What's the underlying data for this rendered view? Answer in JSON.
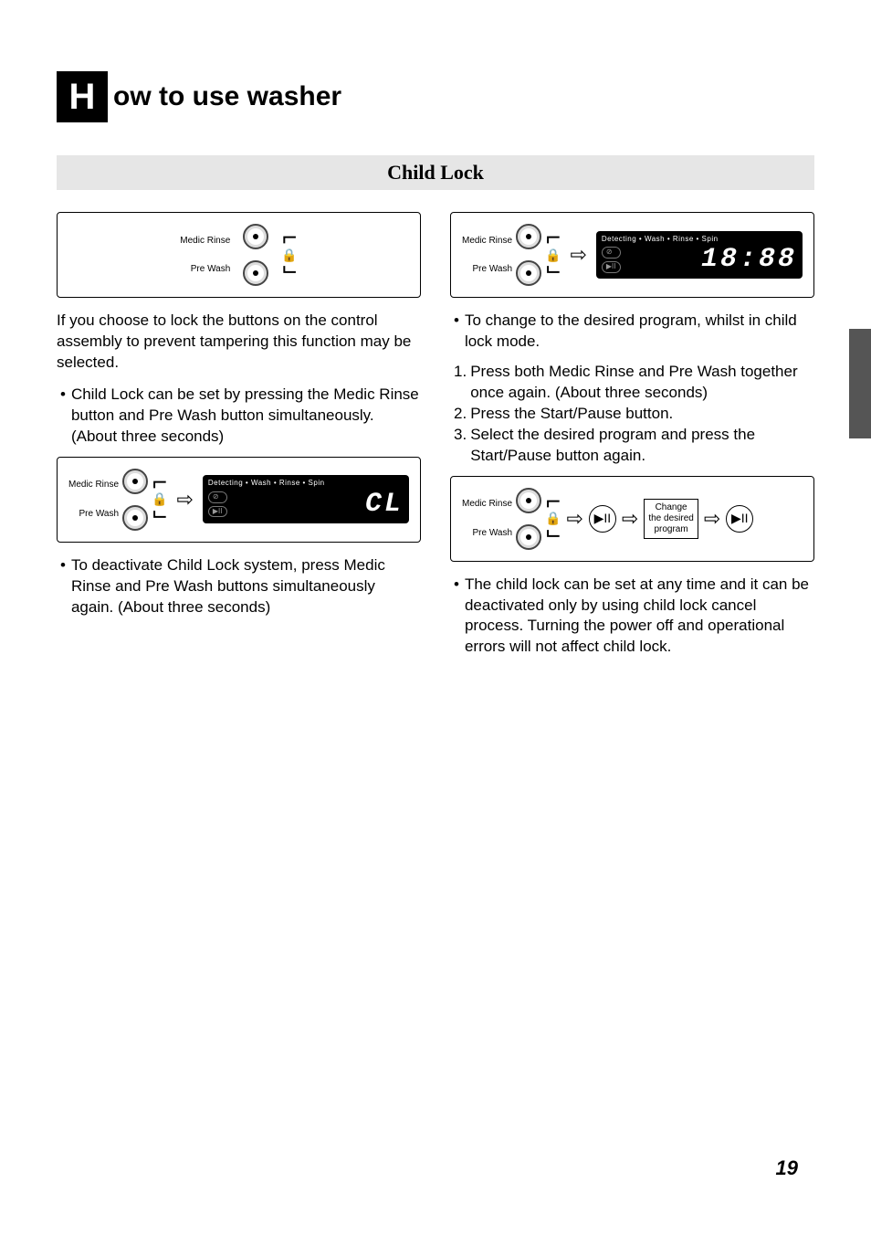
{
  "colors": {
    "page_bg": "#ffffff",
    "text": "#000000",
    "dropcap_bg": "#000000",
    "dropcap_fg": "#ffffff",
    "subtitle_bg": "#e6e6e6",
    "panel_bg": "#000000",
    "panel_fg": "#ffffff",
    "side_tab": "#555555"
  },
  "typography": {
    "body_font": "Arial",
    "body_size_pt": 13,
    "title_size_pt": 22,
    "subtitle_font": "Georgia",
    "subtitle_size_pt": 17,
    "seg_font": "Courier New"
  },
  "title": {
    "dropcap": "H",
    "rest": "ow to use washer"
  },
  "subtitle": "Child Lock",
  "buttons": {
    "medic": "Medic Rinse",
    "prewash": "Pre Wash"
  },
  "display": {
    "status_line": "Detecting  •  Wash  •  Rinse  •  Spin",
    "cl": "CL",
    "time": "18:88"
  },
  "left": {
    "intro": "If you choose to lock the buttons on the control assembly to prevent tampering this function may be selected.",
    "set": "Child Lock can be set by pressing the Medic Rinse  button and Pre Wash  button simultaneously. (About three seconds)",
    "deactivate": "To deactivate Child Lock system, press Medic Rinse  and Pre Wash  buttons simultaneously again. (About three seconds)"
  },
  "right": {
    "intro": "To change to the desired program, whilst in child lock mode.",
    "steps": {
      "s1": "Press both Medic Rinse and Pre Wash together once again. (About three seconds)",
      "s2": "Press the Start/Pause button.",
      "s3": "Select the desired program and press the Start/Pause button again."
    },
    "change_box": {
      "l1": "Change",
      "l2": "the desired",
      "l3": "program"
    },
    "note": "The child lock can be set at any time and it can be deactivated only by using child lock cancel process. Turning the power off and operational errors will not affect child lock."
  },
  "page_number": "19"
}
